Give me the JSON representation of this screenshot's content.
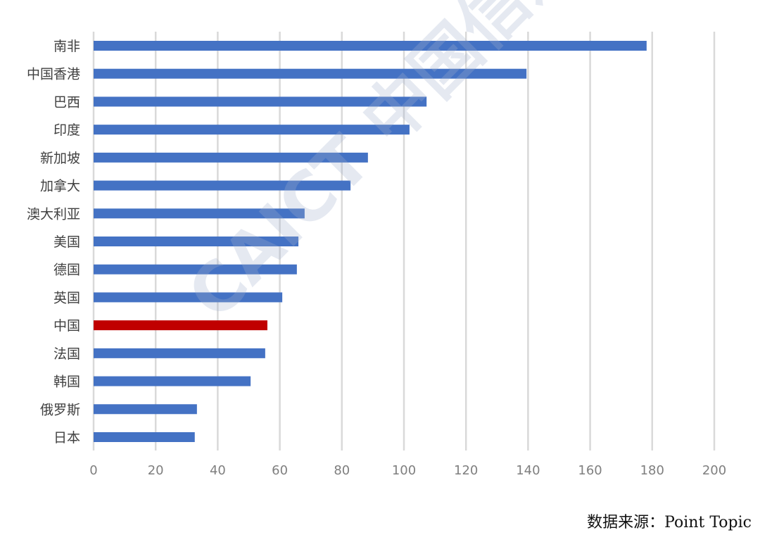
{
  "chart_data": {
    "type": "bar",
    "orientation": "horizontal",
    "categories": [
      "南非",
      "中国香港",
      "巴西",
      "印度",
      "新加坡",
      "加拿大",
      "澳大利亚",
      "美国",
      "德国",
      "英国",
      "中国",
      "法国",
      "韩国",
      "俄罗斯",
      "日本"
    ],
    "values": [
      178.2,
      139.5,
      107.3,
      101.8,
      88.4,
      82.8,
      68.0,
      66.0,
      65.5,
      60.8,
      56.0,
      55.3,
      50.6,
      33.3,
      32.6
    ],
    "highlight": "中国",
    "colors": {
      "bar": "#4472c4",
      "highlight": "#c00000",
      "grid": "#d9d9d9"
    },
    "xlim": [
      0,
      200
    ],
    "xticks": [
      "0",
      "20",
      "40",
      "60",
      "80",
      "100",
      "120",
      "140",
      "160",
      "180",
      "200"
    ],
    "grid": true,
    "title": "",
    "xlabel": "",
    "ylabel": ""
  },
  "source": "数据来源：Point  Topic",
  "watermark": "CAICT 中国信通院"
}
